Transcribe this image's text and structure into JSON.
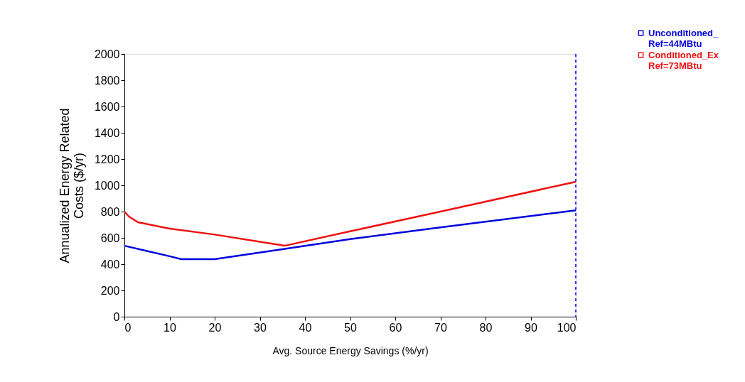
{
  "chart_data": {
    "type": "line",
    "xlabel": "Avg. Source Energy Savings (%/yr)",
    "ylabel": "Annualized Energy Related\nCosts ($/yr)",
    "xlim": [
      0,
      100
    ],
    "xticks": [
      0,
      10,
      20,
      30,
      40,
      50,
      60,
      70,
      80,
      90,
      100
    ],
    "ylim": [
      0,
      2000
    ],
    "yticks": [
      0,
      200,
      400,
      600,
      800,
      1000,
      1200,
      1400,
      1600,
      1800,
      2000
    ],
    "grid": false,
    "legend": "top right",
    "line_style": "solid",
    "marker": "none",
    "ref_lines": [
      {
        "axis": "x",
        "value": 100,
        "color": "#3333ff",
        "line_style": "dashed"
      }
    ],
    "series": [
      {
        "name": "Unconditioned_\nRef=44MBtu",
        "color": "#0000dd",
        "x": [
          0,
          5,
          10,
          12.6,
          20,
          35,
          50,
          70,
          100
        ],
        "values": [
          540,
          500,
          460,
          438,
          438,
          514,
          590,
          680,
          810
        ]
      },
      {
        "name": "Conditioned_Ex\nRef=73MBtu",
        "color": "#ee1111",
        "x": [
          0,
          1,
          3,
          10,
          20,
          30,
          35.5,
          50,
          70,
          100
        ],
        "values": [
          800,
          762,
          719,
          670,
          625,
          570,
          540,
          650,
          800,
          1027
        ]
      }
    ]
  }
}
